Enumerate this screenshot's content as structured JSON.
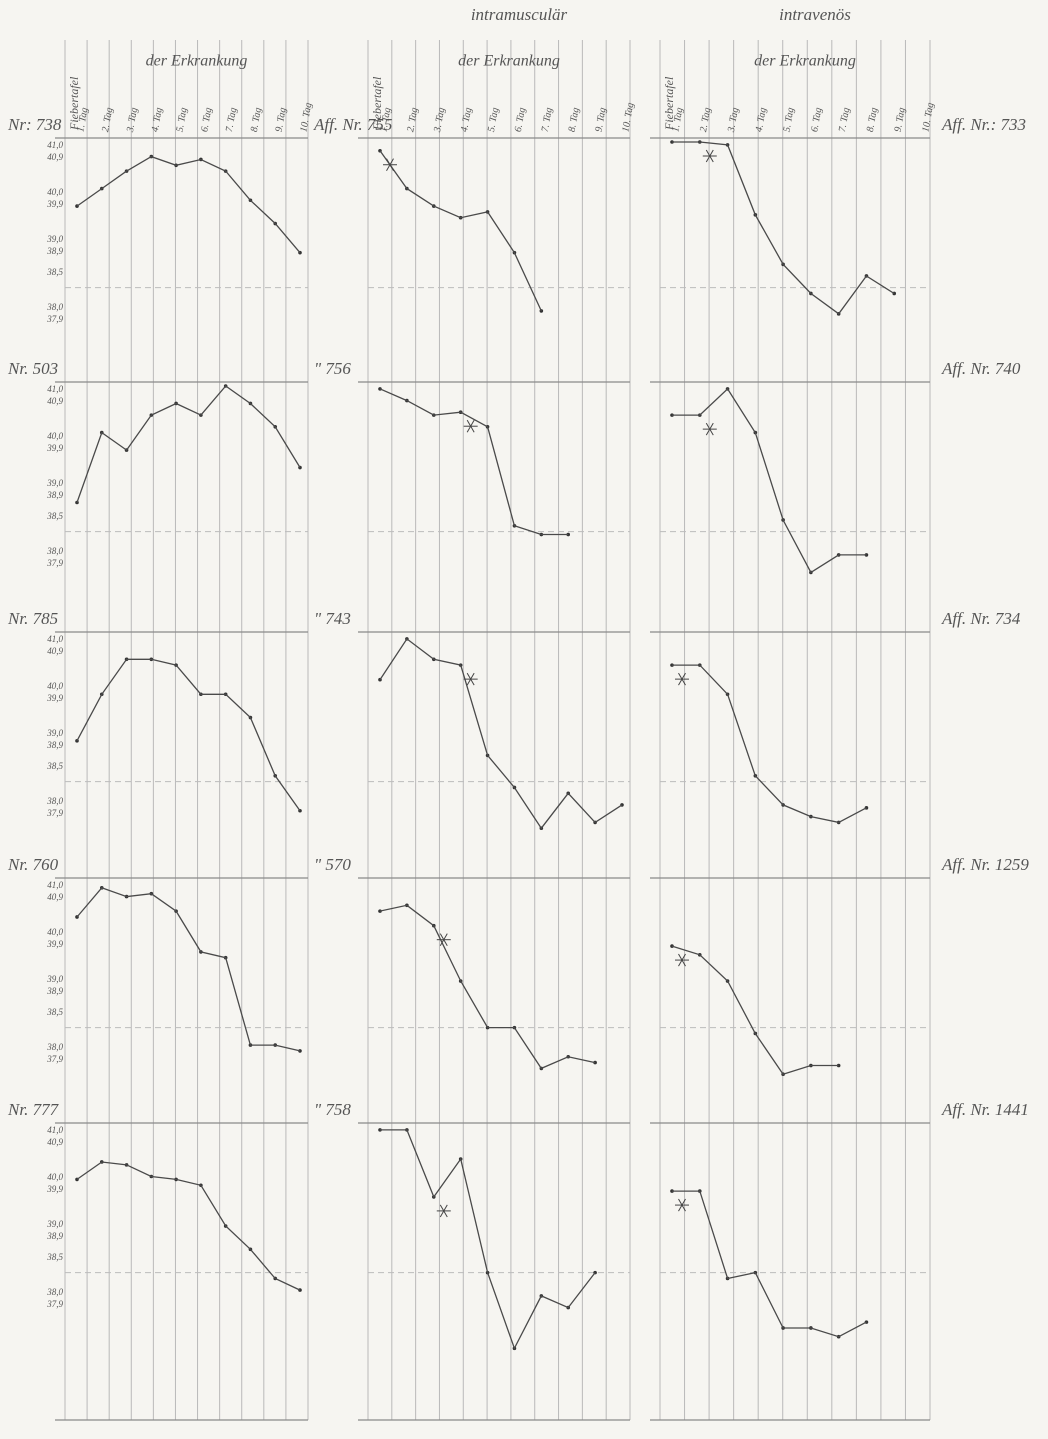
{
  "days": [
    "1. Tag",
    "2. Tag",
    "3. Tag",
    "4. Tag",
    "5. Tag",
    "6. Tag",
    "7. Tag",
    "8. Tag",
    "9. Tag",
    "10. Tag"
  ],
  "scale_labels": [
    "41,0",
    "40,9",
    "40,0",
    "39,9",
    "39,0",
    "38,9",
    "38,5",
    "38,0",
    "37,9"
  ],
  "ylim": [
    37,
    41
  ],
  "reference": 38.5,
  "columns": [
    {
      "heading": "der Erkrankung",
      "side_label": "Fiebertafel",
      "panels": [
        {
          "label": "Nr: 738",
          "values": [
            39.9,
            40.2,
            40.5,
            40.75,
            40.6,
            40.7,
            40.5,
            40.0,
            39.6,
            39.1
          ]
        },
        {
          "label": "Nr. 503",
          "values": [
            39.0,
            40.2,
            39.9,
            40.5,
            40.7,
            40.5,
            41.0,
            40.7,
            40.3,
            39.6
          ]
        },
        {
          "label": "Nr. 785",
          "values": [
            39.2,
            40.0,
            40.6,
            40.6,
            40.5,
            40.0,
            40.0,
            39.6,
            38.6,
            38.0
          ]
        },
        {
          "label": "Nr. 760",
          "values": [
            40.4,
            40.9,
            40.75,
            40.8,
            40.5,
            39.8,
            39.7,
            38.2,
            38.2,
            38.1
          ]
        },
        {
          "label": "Nr. 777",
          "values": [
            40.1,
            40.4,
            40.35,
            40.15,
            40.1,
            40.0,
            39.3,
            38.9,
            38.4,
            38.2
          ]
        }
      ]
    },
    {
      "route": "intramusculär",
      "heading": "der Erkrankung",
      "side_label": "Fiebertafel",
      "panels": [
        {
          "label": "Aff. Nr. 755",
          "values": [
            40.85,
            40.2,
            39.9,
            39.7,
            39.8,
            39.1,
            38.1,
            null,
            null,
            null
          ]
        },
        {
          "label": "\" 756",
          "values": [
            40.95,
            40.75,
            40.5,
            40.55,
            40.3,
            38.6,
            38.45,
            38.45,
            null,
            null
          ]
        },
        {
          "label": "\" 743",
          "values": [
            40.25,
            40.95,
            40.6,
            40.5,
            38.95,
            38.4,
            37.7,
            38.3,
            37.8,
            38.1
          ]
        },
        {
          "label": "\" 570",
          "values": [
            40.5,
            40.6,
            40.25,
            39.3,
            38.5,
            38.5,
            37.8,
            38.0,
            37.9,
            null
          ]
        },
        {
          "label": "\" 758",
          "values": [
            40.95,
            40.95,
            39.8,
            40.45,
            38.5,
            37.2,
            38.1,
            37.9,
            38.5,
            null
          ]
        }
      ]
    },
    {
      "route": "intravenös",
      "heading": "der Erkrankung",
      "side_label": "Fiebertafel",
      "panels": [
        {
          "label": "Aff. Nr.: 733",
          "values": [
            41.0,
            41.0,
            40.95,
            39.75,
            38.9,
            38.4,
            38.05,
            38.7,
            38.4,
            null
          ]
        },
        {
          "label": "Aff. Nr. 740",
          "values": [
            40.5,
            40.5,
            40.95,
            40.2,
            38.7,
            37.8,
            38.1,
            38.1,
            null,
            null
          ]
        },
        {
          "label": "Aff. Nr. 734",
          "values": [
            40.5,
            40.5,
            40.0,
            38.6,
            38.1,
            37.9,
            37.8,
            38.05,
            null,
            null
          ]
        },
        {
          "label": "Aff. Nr. 1259",
          "values": [
            39.9,
            39.75,
            39.3,
            38.4,
            37.7,
            37.85,
            37.85,
            null,
            null,
            null
          ]
        },
        {
          "label": "Aff. Nr. 1441",
          "values": [
            39.9,
            39.9,
            38.4,
            38.5,
            37.55,
            37.55,
            37.4,
            37.65,
            null,
            null
          ]
        }
      ]
    }
  ]
}
